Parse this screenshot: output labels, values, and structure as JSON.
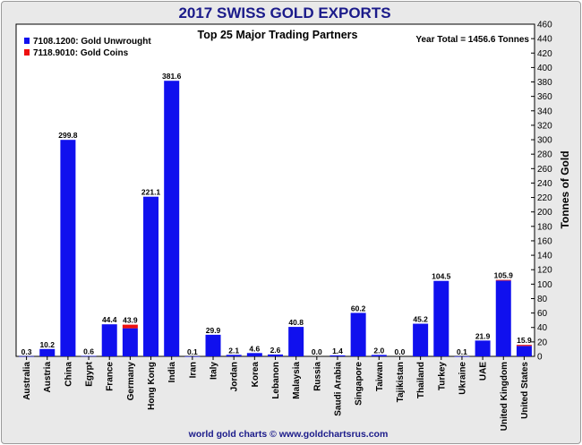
{
  "chart_data": {
    "type": "bar",
    "title": "2017 SWISS GOLD EXPORTS",
    "subtitle": "Top 25 Major Trading Partners",
    "annotation": "Year Total = 1456.6 Tonnes",
    "ylabel": "Tonnes of Gold",
    "footer": "world gold charts © www.goldchartsrus.com",
    "ylim": [
      0,
      460
    ],
    "yticks": [
      0,
      20,
      40,
      60,
      80,
      100,
      120,
      140,
      160,
      180,
      200,
      220,
      240,
      260,
      280,
      300,
      320,
      340,
      360,
      380,
      400,
      420,
      440,
      460
    ],
    "grid": false,
    "legend_position": "top-left",
    "stacked": true,
    "categories": [
      "Australia",
      "Austria",
      "China",
      "Egypt",
      "France",
      "Germany",
      "Hong Kong",
      "India",
      "Iran",
      "Italy",
      "Jordan",
      "Korea",
      "Lebanon",
      "Malaysia",
      "Russia",
      "Saudi Arabia",
      "Singapore",
      "Taiwan",
      "Tajikistan",
      "Thailand",
      "Turkey",
      "Ukraine",
      "UAE",
      "United Kingdom",
      "United States"
    ],
    "totals": [
      "0.3",
      "10.2",
      "299.8",
      "0.6",
      "44.4",
      "43.9",
      "221.1",
      "381.6",
      "0.1",
      "29.9",
      "2.1",
      "4.6",
      "2.6",
      "40.8",
      "0.0",
      "1.4",
      "60.2",
      "2.0",
      "0.0",
      "45.2",
      "104.5",
      "0.1",
      "21.9",
      "105.9",
      "15.9"
    ],
    "series": [
      {
        "name": "7108.1200: Gold Unwrought",
        "color": "#1010ee",
        "values": [
          0.3,
          10.2,
          299.8,
          0.6,
          44.4,
          38.9,
          221.1,
          381.6,
          0.1,
          29.9,
          2.1,
          4.6,
          2.6,
          40.8,
          0.0,
          1.4,
          60.2,
          2.0,
          0.0,
          45.2,
          104.5,
          0.1,
          21.9,
          104.9,
          14.4
        ]
      },
      {
        "name": "7118.9010: Gold Coins",
        "color": "#ee1010",
        "values": [
          0,
          0,
          0,
          0,
          0,
          5.0,
          0,
          0,
          0,
          0,
          0,
          0,
          0,
          0,
          0,
          0,
          0,
          0,
          0,
          0,
          0,
          0,
          0,
          1.0,
          1.5
        ]
      }
    ]
  }
}
